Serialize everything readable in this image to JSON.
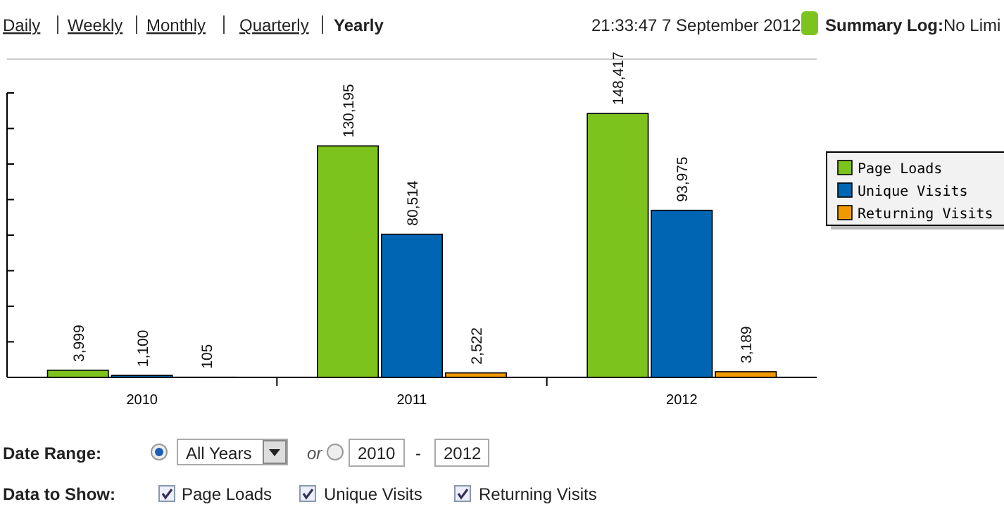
{
  "chart_data": {
    "type": "bar",
    "categories": [
      "2010",
      "2011",
      "2012"
    ],
    "series": [
      {
        "name": "Page Loads",
        "color": "#7dc31e",
        "values": [
          3999,
          130195,
          148417
        ],
        "value_labels": [
          "3,999",
          "130,195",
          "148,417"
        ]
      },
      {
        "name": "Unique Visits",
        "color": "#0066b3",
        "values": [
          1100,
          80514,
          93975
        ],
        "value_labels": [
          "1,100",
          "80,514",
          "93,975"
        ]
      },
      {
        "name": "Returning Visits",
        "color": "#f09a00",
        "values": [
          105,
          2522,
          3189
        ],
        "value_labels": [
          "105",
          "2,522",
          "3,189"
        ]
      }
    ],
    "ylim": [
      0,
      160000
    ],
    "yticks": [
      {
        "value": 0,
        "label": null
      },
      {
        "value": 20000,
        "label": null
      },
      {
        "value": 40000,
        "label": null
      },
      {
        "value": 60000,
        "label": null
      },
      {
        "value": 80000,
        "label": null
      },
      {
        "value": 100000,
        "label": null
      },
      {
        "value": 120000,
        "label": null
      },
      {
        "value": 140000,
        "label": null
      },
      {
        "value": 160000,
        "label": null
      }
    ],
    "tick_labels": "x",
    "legend": "right",
    "annotations": [
      "Daily",
      "Weekly",
      "Monthly",
      "Quarterly",
      "Yearly",
      "21:33:47 7 September 2012",
      "Summary Log:",
      "No Limi",
      "Date Range:",
      "All Years",
      "or",
      "2010",
      "-",
      "2012",
      "Data to Show:",
      "Page Loads",
      "Unique Visits",
      "Returning Visits"
    ]
  }
}
